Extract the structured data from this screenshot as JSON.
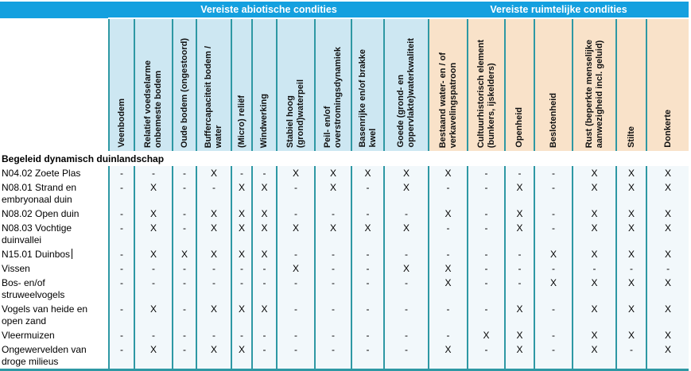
{
  "document": {
    "band": {
      "abiotic_title": "Vereiste abiotische condities",
      "spatial_title": "Vereiste ruimtelijke condities"
    },
    "columns": [
      {
        "group": "abiotisch",
        "lines": [
          "Veenbodem"
        ]
      },
      {
        "group": "abiotisch",
        "lines": [
          "Relatief voedselarme",
          "onbemeste bodem"
        ]
      },
      {
        "group": "abiotisch",
        "lines": [
          "Oude bodem (ongestoord)"
        ]
      },
      {
        "group": "abiotisch",
        "lines": [
          "Buffercapaciteit bodem /",
          "water"
        ]
      },
      {
        "group": "abiotisch",
        "lines": [
          "(Micro) reliëf"
        ]
      },
      {
        "group": "abiotisch",
        "lines": [
          "Windwerking"
        ]
      },
      {
        "group": "abiotisch",
        "lines": [
          "Stabiel hoog",
          "(grond)waterpeil"
        ]
      },
      {
        "group": "abiotisch",
        "lines": [
          "Peil- en/of",
          "overstromingsdynamiek"
        ]
      },
      {
        "group": "abiotisch",
        "lines": [
          "Basenrijke en/of brakke",
          "kwel"
        ]
      },
      {
        "group": "abiotisch",
        "lines": [
          "Goede (grond- en",
          "oppervlakte)waterkwaliteit"
        ]
      },
      {
        "group": "ruimtelijk",
        "lines": [
          "Bestaand water- en / of",
          "verkavelingspatroon"
        ]
      },
      {
        "group": "ruimtelijk",
        "lines": [
          "Cultuurhistorisch element",
          "(bunkers, ijskelders)"
        ]
      },
      {
        "group": "ruimtelijk",
        "lines": [
          "Openheid"
        ]
      },
      {
        "group": "ruimtelijk",
        "lines": [
          "Beslotenheid"
        ]
      },
      {
        "group": "ruimtelijk",
        "lines": [
          "Rust (beperkte menselijke",
          "aanwezigheid incl. geluid)"
        ]
      },
      {
        "group": "ruimtelijk",
        "lines": [
          "Stilte"
        ]
      },
      {
        "group": "ruimtelijk",
        "lines": [
          "Donkerte"
        ]
      }
    ],
    "section_label": "Begeleid dynamisch duinlandschap",
    "rows": [
      {
        "label": "N04.02 Zoete Plas",
        "values": [
          "-",
          "-",
          "-",
          "X",
          "-",
          "-",
          "X",
          "X",
          "X",
          "X",
          "X",
          "-",
          "-",
          "-",
          "X",
          "X",
          "X"
        ]
      },
      {
        "label": "N08.01 Strand en embryonaal duin",
        "values": [
          "-",
          "X",
          "-",
          "-",
          "X",
          "X",
          "-",
          "X",
          "-",
          "X",
          "-",
          "-",
          "X",
          "-",
          "X",
          "X",
          "X"
        ]
      },
      {
        "label": "N08.02 Open duin",
        "values": [
          "-",
          "X",
          "-",
          "X",
          "X",
          "X",
          "-",
          "-",
          "-",
          "-",
          "X",
          "-",
          "X",
          "-",
          "X",
          "X",
          "X"
        ]
      },
      {
        "label": "N08.03 Vochtige duinvallei",
        "values": [
          "-",
          "X",
          "-",
          "X",
          "X",
          "X",
          "X",
          "X",
          "X",
          "X",
          "-",
          "-",
          "X",
          "-",
          "X",
          "X",
          "X"
        ]
      },
      {
        "label": "N15.01 Duinbos",
        "caret": true,
        "values": [
          "-",
          "X",
          "X",
          "X",
          "X",
          "X",
          "-",
          "-",
          "-",
          "-",
          "-",
          "-",
          "-",
          "X",
          "X",
          "X",
          "X"
        ]
      },
      {
        "label": "Vissen",
        "values": [
          "-",
          "-",
          "-",
          "-",
          "-",
          "-",
          "X",
          "-",
          "-",
          "X",
          "X",
          "-",
          "-",
          "-",
          "-",
          "-",
          "-"
        ]
      },
      {
        "label": "Bos- en/of struweelvogels",
        "values": [
          "-",
          "-",
          "-",
          "-",
          "-",
          "-",
          "-",
          "-",
          "-",
          "-",
          "X",
          "-",
          "-",
          "X",
          "X",
          "X",
          "X"
        ]
      },
      {
        "label": "Vogels van heide en open zand",
        "values": [
          "-",
          "X",
          "-",
          "X",
          "X",
          "X",
          "-",
          "-",
          "-",
          "-",
          "-",
          "-",
          "X",
          "-",
          "X",
          "X",
          "X"
        ]
      },
      {
        "label": "Vleermuizen",
        "values": [
          "-",
          "-",
          "-",
          "-",
          "-",
          "-",
          "-",
          "-",
          "-",
          "-",
          "-",
          "X",
          "X",
          "-",
          "X",
          "X",
          "X"
        ]
      },
      {
        "label": "Ongewervelden van droge milieus",
        "values": [
          "-",
          "X",
          "-",
          "X",
          "X",
          "-",
          "-",
          "-",
          "-",
          "-",
          "X",
          "-",
          "X",
          "-",
          "X",
          "-",
          "X"
        ]
      }
    ],
    "colors": {
      "band_blue": "#14A0DF",
      "abiotic_header_bg": "#CDE7F2",
      "spatial_header_bg": "#F9E2C9",
      "grid_teal": "#2E98A4",
      "cell_bg": "#F2F8FB",
      "band_text": "#FFFFFF",
      "text": "#000000"
    }
  }
}
